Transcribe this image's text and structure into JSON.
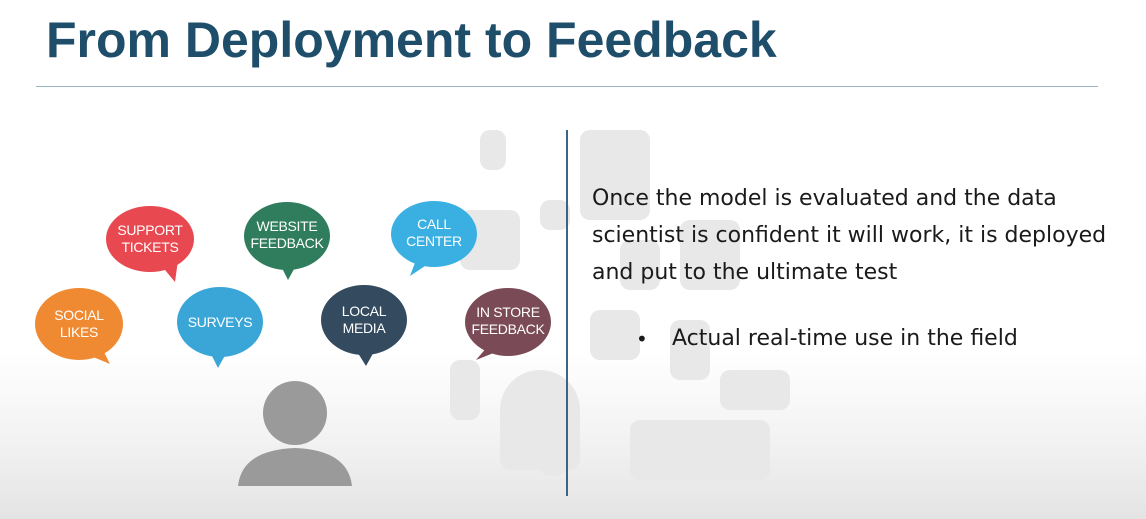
{
  "slide": {
    "title": "From Deployment to Feedback",
    "body": "Once the model is evaluated and the data scientist is confident it will work, it is deployed and put to the ultimate test",
    "bullets": [
      "Actual real-time use in the field"
    ]
  },
  "bubbles": [
    {
      "id": "social-likes",
      "lines": [
        "SOCIAL",
        "LIKES"
      ],
      "color": "#f08a32"
    },
    {
      "id": "support-tickets",
      "lines": [
        "SUPPORT",
        "TICKETS"
      ],
      "color": "#e84850"
    },
    {
      "id": "surveys",
      "lines": [
        "SURVEYS"
      ],
      "color": "#3aa6d8"
    },
    {
      "id": "website-feedback",
      "lines": [
        "WEBSITE",
        "FEEDBACK"
      ],
      "color": "#2f7d5c"
    },
    {
      "id": "local-media",
      "lines": [
        "LOCAL",
        "MEDIA"
      ],
      "color": "#334a5f"
    },
    {
      "id": "call-center",
      "lines": [
        "CALL",
        "CENTER"
      ],
      "color": "#3ab0e2"
    },
    {
      "id": "in-store-feedback",
      "lines": [
        "IN STORE",
        "FEEDBACK"
      ],
      "color": "#7a4a57"
    }
  ],
  "icons": {
    "person": "person-icon",
    "watermark": "watermark-logo-icon"
  }
}
